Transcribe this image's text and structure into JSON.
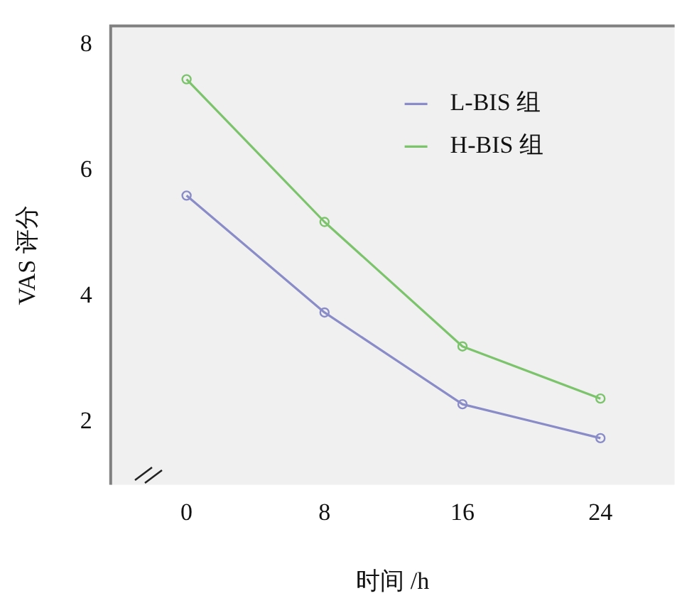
{
  "chart_data": {
    "type": "line",
    "xlabel": "时间 /h",
    "ylabel": "VAS 评分",
    "x": [
      0,
      8,
      16,
      24
    ],
    "series": [
      {
        "name": "L-BIS 组",
        "color": "#8a8cc8",
        "values": [
          5.6,
          3.74,
          2.28,
          1.74
        ]
      },
      {
        "name": "H-BIS 组",
        "color": "#7cc46c",
        "values": [
          7.45,
          5.18,
          3.2,
          2.37
        ]
      }
    ],
    "xlim": [
      -4.4,
      28.3
    ],
    "xticks": [
      0,
      8,
      16,
      24
    ],
    "ylim": [
      1,
      8.3
    ],
    "yticks": [
      2,
      4,
      6,
      8
    ],
    "grid": false,
    "legend": "top right",
    "marker": "circle",
    "line_style": "solid"
  }
}
